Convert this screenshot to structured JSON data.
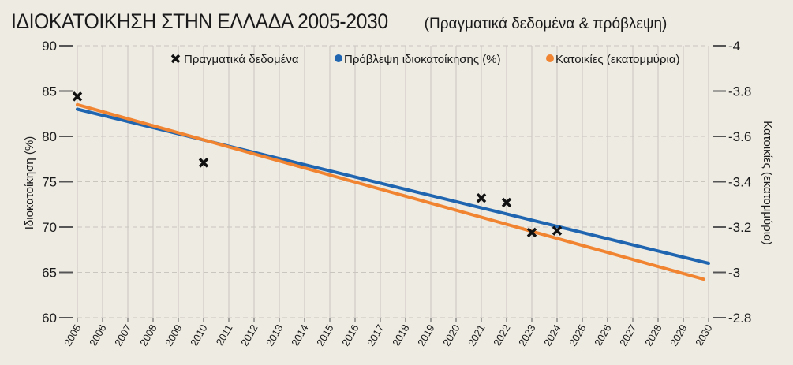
{
  "chart_data": {
    "type": "line",
    "title": "ΙΔΙΟΚΑΤΟΙΚΗΣΗ ΣΤΗΝ ΕΛΛΑΔΑ 2005-2030",
    "subtitle": "(Πραγματικά δεδομένα & πρόβλεψη)",
    "ylabel": "Ιδιοκατοίκηση (%)",
    "y2label": "Κατοικίες (εκατομμύρια)",
    "ylim": [
      60,
      90
    ],
    "y2lim": [
      -4,
      -2.8
    ],
    "yticks": [
      "60",
      "65",
      "70",
      "75",
      "80",
      "85",
      "90"
    ],
    "y2ticks": [
      "-4",
      "-3.8",
      "-3.6",
      "-3.4",
      "-3.2",
      "-3",
      "-2.8"
    ],
    "xlim": [
      2005,
      2030
    ],
    "xticks": [
      "2005",
      "2006",
      "2007",
      "2008",
      "2009",
      "2010",
      "2011",
      "2012",
      "2013",
      "2014",
      "2015",
      "2016",
      "2017",
      "2018",
      "2019",
      "2020",
      "2021",
      "2022",
      "2023",
      "2024",
      "2025",
      "2026",
      "2027",
      "2028",
      "2029",
      "2030"
    ],
    "legend": [
      "Πραγματικά δεδομένα",
      "Πρόβλεψη ιδιοκατοίκησης (%)",
      "Κατοικίες (εκατομμύρια)"
    ],
    "legend_position": "top-right",
    "series": [
      {
        "name": "Πραγματικά δεδομένα",
        "kind": "scatter",
        "axis": "left",
        "color": "#111111",
        "x": [
          2005,
          2010,
          2021,
          2022,
          2023,
          2024
        ],
        "y": [
          84.4,
          77.1,
          73.2,
          72.7,
          69.4,
          69.6
        ]
      },
      {
        "name": "Πρόβλεψη ιδιοκατοίκησης (%)",
        "kind": "line",
        "axis": "left",
        "color": "#1f65b0",
        "x": [
          2005,
          2030
        ],
        "y": [
          83.0,
          66.0
        ]
      },
      {
        "name": "Κατοικίες (εκατομμύρια)",
        "kind": "line",
        "axis": "right",
        "color": "#f08431",
        "x": [
          2005,
          2029.8
        ],
        "y": [
          -3.74,
          -2.97
        ]
      }
    ]
  }
}
